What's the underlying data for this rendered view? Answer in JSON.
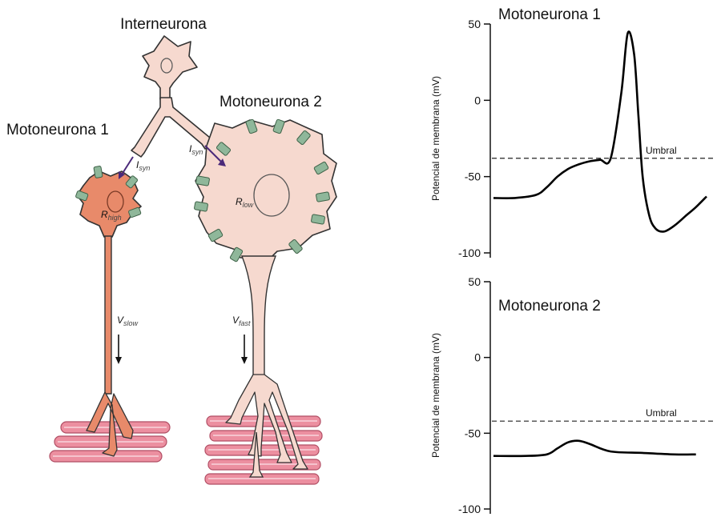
{
  "diagram": {
    "interneuron_label": "Interneurona",
    "moto1_label": "Motoneurona 1",
    "moto2_label": "Motoneurona 2",
    "isyn_1": "I",
    "isyn_1_sub": "syn",
    "isyn_2": "I",
    "isyn_2_sub": "syn",
    "r_high": "R",
    "r_high_sub": "high",
    "r_low": "R",
    "r_low_sub": "low",
    "v_slow": "V",
    "v_slow_sub": "slow",
    "v_fast": "V",
    "v_fast_sub": "fast",
    "colors": {
      "moto1_fill": "#e88a6a",
      "soma_fill": "#f6d9cf",
      "muscle": "#ec8fa0",
      "channel": "#8fb79a",
      "arrow": "#4b2a7a"
    }
  },
  "chart_data": [
    {
      "type": "line",
      "title": "Motoneurona 1",
      "ylabel": "Potencial de membrana (mV)",
      "ylim": [
        -100,
        50
      ],
      "yticks": [
        "50",
        "0",
        "-50",
        "-100"
      ],
      "threshold": {
        "value": -38,
        "label": "Umbral"
      },
      "series": [
        {
          "name": "Motoneurona 1",
          "t": [
            0,
            10,
            20,
            25,
            30,
            35,
            40,
            45,
            50,
            55,
            60,
            63,
            66,
            68,
            70,
            73,
            76,
            80,
            85,
            90,
            95,
            100
          ],
          "values": [
            -64,
            -64,
            -62,
            -57,
            -50,
            -45,
            -42,
            -40,
            -39,
            -38,
            5,
            44,
            30,
            -10,
            -50,
            -75,
            -84,
            -86,
            -82,
            -76,
            -70,
            -63
          ]
        }
      ]
    },
    {
      "type": "line",
      "title": "Motoneurona 2",
      "ylabel": "Potencial de membrana (mV)",
      "ylim": [
        -100,
        50
      ],
      "yticks": [
        "50",
        "0",
        "-50",
        "-100"
      ],
      "threshold": {
        "value": -42,
        "label": "Umbral"
      },
      "series": [
        {
          "name": "Motoneurona 2",
          "t": [
            0,
            15,
            25,
            30,
            35,
            40,
            45,
            55,
            70,
            85,
            95
          ],
          "values": [
            -65,
            -65,
            -64,
            -60,
            -56,
            -55,
            -57,
            -62,
            -63,
            -64,
            -64
          ]
        }
      ]
    }
  ]
}
